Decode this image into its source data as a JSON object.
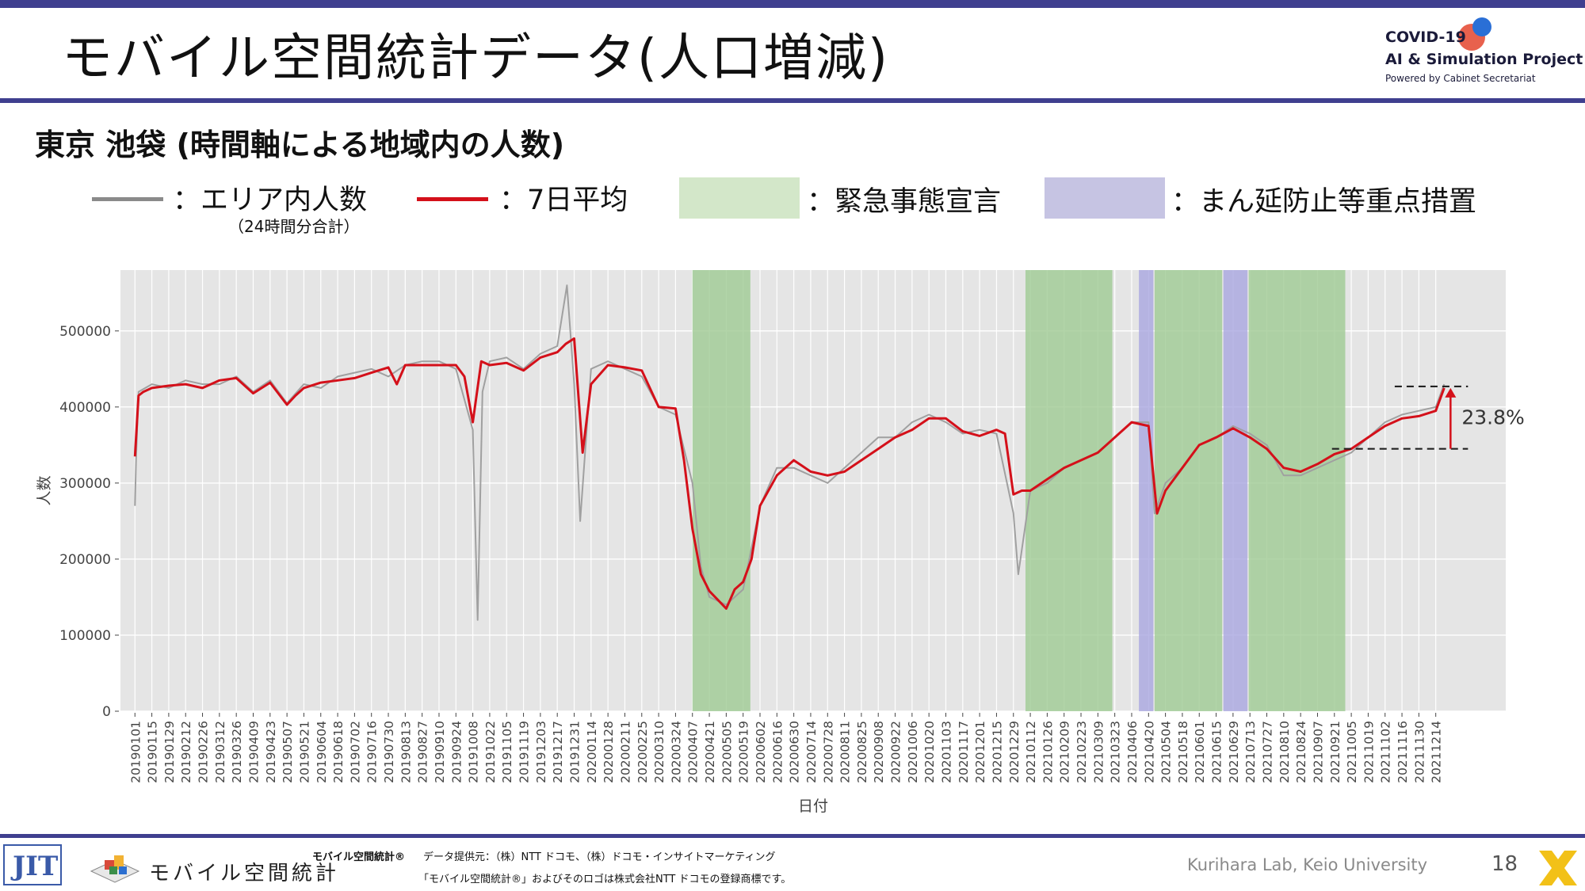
{
  "slide": {
    "title": "モバイル空間統計データ(人口増減)",
    "subtitle": "東京 池袋 (時間軸による地域内の人数)",
    "page_number": "18",
    "lab": "Kurihara Lab, Keio University"
  },
  "logo": {
    "line1": "COVID-19",
    "line2": "AI & Simulation Project",
    "line3": "Powered by Cabinet Secretariat"
  },
  "legend": {
    "area_count": "：エリア内人数",
    "area_count_note": "（24時間分合計）",
    "avg7": "：7日平均",
    "emergency": "：緊急事態宣言",
    "semi_emergency": "：まん延防止等重点措置"
  },
  "footer": {
    "brand": "モバイル空間統計",
    "source_label": "モバイル空間統計®",
    "source": "データ提供元：（株）NTT ドコモ、（株）ドコモ・インサイトマーケティング",
    "trademark": "「モバイル空間統計®」およびそのロゴは株式会社NTT ドコモの登録商標です。"
  },
  "colors": {
    "accent": "#3f3f8f",
    "raw_line": "#a0a0a0",
    "avg_line": "#d4101a",
    "emergency": "#9fca93",
    "semi_emergency": "#a9a6e0",
    "plot_bg": "#e5e5e5"
  },
  "chart_data": {
    "type": "line",
    "xlabel": "日付",
    "ylabel": "人数",
    "ylim": [
      0,
      580000
    ],
    "yticks": [
      "0",
      "100000",
      "200000",
      "300000",
      "400000",
      "500000"
    ],
    "ytick_values": [
      0,
      100000,
      200000,
      300000,
      400000,
      500000
    ],
    "xticks": [
      "20190101",
      "20190115",
      "20190129",
      "20190212",
      "20190226",
      "20190312",
      "20190326",
      "20190409",
      "20190423",
      "20190507",
      "20190521",
      "20190604",
      "20190618",
      "20190702",
      "20190716",
      "20190730",
      "20190813",
      "20190827",
      "20190910",
      "20190924",
      "20191008",
      "20191022",
      "20191105",
      "20191119",
      "20191203",
      "20191217",
      "20191231",
      "20200114",
      "20200128",
      "20200211",
      "20200225",
      "20200310",
      "20200324",
      "20200407",
      "20200421",
      "20200505",
      "20200519",
      "20200602",
      "20200616",
      "20200630",
      "20200714",
      "20200728",
      "20200811",
      "20200825",
      "20200908",
      "20200922",
      "20201006",
      "20201020",
      "20201103",
      "20201117",
      "20201201",
      "20201215",
      "20201229",
      "20210112",
      "20210126",
      "20210209",
      "20210223",
      "20210309",
      "20210323",
      "20210406",
      "20210420",
      "20210504",
      "20210518",
      "20210601",
      "20210615",
      "20210629",
      "20210713",
      "20210727",
      "20210810",
      "20210824",
      "20210907",
      "20210921",
      "20211005",
      "20211019",
      "20211102",
      "20211116",
      "20211130",
      "20211214"
    ],
    "series": [
      {
        "name": "エリア内人数",
        "x": [
          "20190101",
          "20190102",
          "20190104",
          "20190115",
          "20190129",
          "20190212",
          "20190226",
          "20190312",
          "20190326",
          "20190409",
          "20190423",
          "20190507",
          "20190521",
          "20190604",
          "20190618",
          "20190702",
          "20190716",
          "20190730",
          "20190813",
          "20190827",
          "20190910",
          "20190924",
          "20191008",
          "20191012",
          "20191016",
          "20191022",
          "20191105",
          "20191119",
          "20191203",
          "20191217",
          "20191225",
          "20191231",
          "20200105",
          "20200114",
          "20200128",
          "20200211",
          "20200225",
          "20200310",
          "20200324",
          "20200407",
          "20200414",
          "20200421",
          "20200505",
          "20200519",
          "20200602",
          "20200616",
          "20200630",
          "20200714",
          "20200728",
          "20200811",
          "20200825",
          "20200908",
          "20200922",
          "20201006",
          "20201020",
          "20201103",
          "20201117",
          "20201201",
          "20201215",
          "20201229",
          "20210102",
          "20210112",
          "20210126",
          "20210209",
          "20210223",
          "20210309",
          "20210323",
          "20210406",
          "20210420",
          "20210425",
          "20210504",
          "20210518",
          "20210601",
          "20210615",
          "20210629",
          "20210713",
          "20210727",
          "20210810",
          "20210824",
          "20210907",
          "20210921",
          "20211005",
          "20211019",
          "20211102",
          "20211116",
          "20211130",
          "20211214",
          "20211221"
        ],
        "values": [
          270000,
          335000,
          420000,
          430000,
          425000,
          435000,
          430000,
          430000,
          440000,
          420000,
          435000,
          405000,
          430000,
          425000,
          440000,
          445000,
          450000,
          440000,
          455000,
          460000,
          460000,
          450000,
          370000,
          120000,
          420000,
          460000,
          465000,
          450000,
          470000,
          480000,
          560000,
          430000,
          250000,
          450000,
          460000,
          450000,
          440000,
          400000,
          390000,
          300000,
          190000,
          150000,
          140000,
          160000,
          270000,
          320000,
          320000,
          310000,
          300000,
          320000,
          340000,
          360000,
          360000,
          380000,
          390000,
          380000,
          365000,
          370000,
          365000,
          260000,
          180000,
          290000,
          300000,
          320000,
          330000,
          340000,
          360000,
          380000,
          380000,
          260000,
          300000,
          320000,
          350000,
          360000,
          375000,
          365000,
          350000,
          310000,
          310000,
          320000,
          330000,
          340000,
          360000,
          380000,
          390000,
          395000,
          400000,
          430000
        ]
      },
      {
        "name": "7日平均",
        "x": [
          "20190101",
          "20190104",
          "20190108",
          "20190115",
          "20190129",
          "20190212",
          "20190226",
          "20190312",
          "20190326",
          "20190409",
          "20190423",
          "20190507",
          "20190514",
          "20190521",
          "20190604",
          "20190618",
          "20190702",
          "20190716",
          "20190730",
          "20190806",
          "20190813",
          "20190827",
          "20190910",
          "20190924",
          "20191001",
          "20191008",
          "20191015",
          "20191022",
          "20191105",
          "20191119",
          "20191203",
          "20191217",
          "20191224",
          "20191231",
          "20200107",
          "20200114",
          "20200128",
          "20200211",
          "20200225",
          "20200310",
          "20200324",
          "20200331",
          "20200407",
          "20200414",
          "20200421",
          "20200505",
          "20200512",
          "20200519",
          "20200526",
          "20200602",
          "20200616",
          "20200630",
          "20200714",
          "20200728",
          "20200811",
          "20200825",
          "20200908",
          "20200922",
          "20201006",
          "20201020",
          "20201103",
          "20201117",
          "20201201",
          "20201215",
          "20201222",
          "20201229",
          "20210105",
          "20210112",
          "20210126",
          "20210209",
          "20210223",
          "20210309",
          "20210323",
          "20210406",
          "20210420",
          "20210427",
          "20210504",
          "20210518",
          "20210601",
          "20210615",
          "20210629",
          "20210713",
          "20210727",
          "20210810",
          "20210824",
          "20210907",
          "20210921",
          "20211005",
          "20211019",
          "20211102",
          "20211116",
          "20211130",
          "20211214",
          "20211221"
        ],
        "values": [
          335000,
          415000,
          420000,
          425000,
          428000,
          430000,
          425000,
          435000,
          438000,
          418000,
          432000,
          403000,
          415000,
          425000,
          432000,
          435000,
          438000,
          445000,
          452000,
          430000,
          455000,
          455000,
          455000,
          455000,
          440000,
          380000,
          460000,
          455000,
          458000,
          448000,
          465000,
          472000,
          483000,
          490000,
          340000,
          430000,
          455000,
          452000,
          448000,
          400000,
          398000,
          330000,
          240000,
          180000,
          158000,
          135000,
          160000,
          170000,
          200000,
          270000,
          310000,
          330000,
          315000,
          310000,
          315000,
          330000,
          345000,
          360000,
          370000,
          385000,
          385000,
          368000,
          362000,
          370000,
          365000,
          285000,
          290000,
          290000,
          305000,
          320000,
          330000,
          340000,
          360000,
          380000,
          375000,
          260000,
          290000,
          320000,
          350000,
          360000,
          372000,
          360000,
          345000,
          320000,
          315000,
          325000,
          338000,
          345000,
          360000,
          375000,
          385000,
          388000,
          395000,
          425000
        ]
      }
    ],
    "bands": [
      {
        "name": "緊急事態宣言",
        "start": "20200407",
        "end": "20200525"
      },
      {
        "name": "緊急事態宣言",
        "start": "20210108",
        "end": "20210321"
      },
      {
        "name": "まん延防止等重点措置",
        "start": "20210412",
        "end": "20210424"
      },
      {
        "name": "緊急事態宣言",
        "start": "20210425",
        "end": "20210620"
      },
      {
        "name": "まん延防止等重点措置",
        "start": "20210621",
        "end": "20210711"
      },
      {
        "name": "緊急事態宣言",
        "start": "20210712",
        "end": "20210930"
      }
    ],
    "annotation": {
      "text": "23.8%",
      "from_value": 345000,
      "to_value": 427000,
      "from_date": "20210919",
      "to_date": "20211221"
    },
    "grid": true
  }
}
